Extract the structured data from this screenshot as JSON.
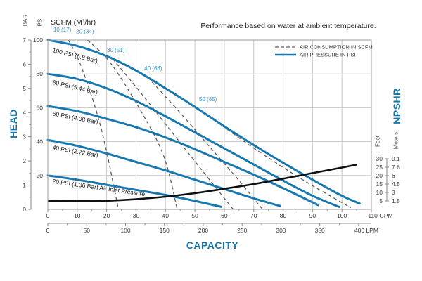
{
  "title": "Performance based on water at ambient temperature.",
  "labels": {
    "head": "HEAD",
    "capacity": "CAPACITY",
    "npshr": "NPSHR",
    "bar_unit": "BAR",
    "psi_unit": "PSI",
    "scfm_header": "SCFM (M³/hr)",
    "feet_unit": "Feet",
    "meters_unit": "Meters"
  },
  "legend": {
    "items": [
      {
        "label": "AIR CONSUMPTION IN SCFM",
        "style": "dashed"
      },
      {
        "label": "AIR PRESSURE IN PSI",
        "style": "solid"
      }
    ]
  },
  "colors": {
    "accent_blue": "#1577ad",
    "curve_blue": "#1878b0",
    "air_label_blue": "#3e96c8",
    "dashed_gray": "#5f5f5f",
    "npshr_black": "#0f0f0f",
    "grid": "#c7c7c7",
    "border": "#9b9b9b",
    "text": "#3c3c3c"
  },
  "chart_data": {
    "type": "line",
    "title": "Performance based on water at ambient temperature.",
    "x_axis_gpm": {
      "max": 110,
      "tick_step": 10,
      "tick_labels": [
        "0",
        "10",
        "20",
        "30",
        "40",
        "50",
        "60",
        "70",
        "80",
        "90",
        "100"
      ],
      "end_label": "110 GPM"
    },
    "x_axis_lpm": {
      "max": 400,
      "tick_step": 50,
      "tick_labels": [
        "0",
        "50",
        "100",
        "150",
        "200",
        "250",
        "300",
        "350"
      ],
      "end_label": "400 LPM"
    },
    "gpm_to_lpm": 3.785,
    "y_axis_psi": {
      "max": 100,
      "tick_labels": [
        100,
        80,
        60,
        40,
        20
      ],
      "gridlines": [
        20,
        40,
        60,
        80
      ]
    },
    "y_axis_bar": {
      "max": 7,
      "tick_labels": [
        7,
        6,
        5,
        4,
        3,
        2,
        1,
        0
      ]
    },
    "npshr_axis": {
      "feet": [
        "30",
        "25",
        "20",
        "15",
        "10",
        "5"
      ],
      "meters": [
        "9.1",
        "7.6",
        "6",
        "4.5",
        "3",
        "1.5"
      ]
    },
    "pressure_curves": [
      {
        "name": "100 PSI (6.8 Bar)",
        "label_anchor": [
          1.5,
          93
        ],
        "label_angle": 14,
        "points": [
          [
            0,
            100
          ],
          [
            10,
            96.5
          ],
          [
            20,
            90.5
          ],
          [
            30,
            82
          ],
          [
            40,
            71.5
          ],
          [
            50,
            60.5
          ],
          [
            60,
            49
          ],
          [
            70,
            38
          ],
          [
            80,
            27.5
          ],
          [
            90,
            17.5
          ],
          [
            100,
            8
          ],
          [
            106,
            3.5
          ]
        ]
      },
      {
        "name": "80 PSI (5.44 Bar)",
        "label_anchor": [
          1.5,
          74
        ],
        "label_angle": 13,
        "points": [
          [
            0,
            80
          ],
          [
            10,
            77
          ],
          [
            20,
            71.5
          ],
          [
            30,
            64
          ],
          [
            40,
            55
          ],
          [
            50,
            45.5
          ],
          [
            60,
            36
          ],
          [
            70,
            26.5
          ],
          [
            80,
            17
          ],
          [
            90,
            8
          ],
          [
            99,
            1.5
          ]
        ]
      },
      {
        "name": "60 PSI (4.08 Bar)",
        "label_anchor": [
          1.5,
          55.5
        ],
        "label_angle": 11,
        "points": [
          [
            0,
            61
          ],
          [
            10,
            58
          ],
          [
            20,
            53.5
          ],
          [
            30,
            48.5
          ],
          [
            40,
            42.5
          ],
          [
            50,
            35.5
          ],
          [
            60,
            28
          ],
          [
            70,
            20.5
          ],
          [
            80,
            12.5
          ],
          [
            92,
            2.5
          ]
        ]
      },
      {
        "name": "40 PSI (2.72 Bar)",
        "label_anchor": [
          1.5,
          35.5
        ],
        "label_angle": 10,
        "points": [
          [
            0,
            41
          ],
          [
            10,
            37.5
          ],
          [
            20,
            33
          ],
          [
            30,
            28
          ],
          [
            40,
            23
          ],
          [
            50,
            17.5
          ],
          [
            60,
            12
          ],
          [
            70,
            6.5
          ],
          [
            79,
            2
          ]
        ]
      },
      {
        "name": "20 PSI (1.36 Bar) Air Inlet Pressure",
        "label_anchor": [
          1.5,
          15.5
        ],
        "label_angle": 8,
        "points": [
          [
            0,
            20
          ],
          [
            10,
            17.5
          ],
          [
            20,
            14.5
          ],
          [
            30,
            11.5
          ],
          [
            40,
            8.5
          ],
          [
            50,
            5
          ],
          [
            59,
            1.5
          ]
        ]
      }
    ],
    "air_curves": [
      {
        "name": "10 (17)",
        "label_anchor": [
          1.9,
          105
        ],
        "points": [
          [
            7,
            100
          ],
          [
            11,
            86
          ],
          [
            16.5,
            58
          ],
          [
            20,
            34
          ],
          [
            24,
            0
          ]
        ]
      },
      {
        "name": "20 (34)",
        "label_anchor": [
          9.6,
          104
        ],
        "points": [
          [
            13.5,
            100
          ],
          [
            21.5,
            86
          ],
          [
            32,
            57
          ],
          [
            39.5,
            31
          ],
          [
            44,
            0
          ]
        ]
      },
      {
        "name": "30 (51)",
        "label_anchor": [
          20.1,
          93
        ],
        "points": [
          [
            22,
            89
          ],
          [
            32,
            68
          ],
          [
            42,
            46
          ],
          [
            52,
            24
          ],
          [
            63,
            0
          ]
        ]
      },
      {
        "name": "40 (68)",
        "label_anchor": [
          32.8,
          82.2
        ],
        "points": [
          [
            34,
            78
          ],
          [
            45,
            57
          ],
          [
            55,
            37
          ],
          [
            65,
            17
          ],
          [
            73,
            0
          ]
        ]
      },
      {
        "name": "50 (85)",
        "label_anchor": [
          51.4,
          64
        ],
        "points": [
          [
            54,
            56
          ],
          [
            66,
            41
          ],
          [
            78,
            27
          ],
          [
            90,
            14
          ],
          [
            103,
            1
          ]
        ]
      }
    ],
    "npshr_curve": {
      "points_gpm_feet": [
        [
          0,
          5
        ],
        [
          10,
          4.9
        ],
        [
          20,
          5.1
        ],
        [
          30,
          6
        ],
        [
          40,
          7.5
        ],
        [
          50,
          9.6
        ],
        [
          60,
          12.2
        ],
        [
          70,
          15
        ],
        [
          80,
          18.2
        ],
        [
          90,
          21.5
        ],
        [
          100,
          24.8
        ],
        [
          105,
          26.5
        ]
      ]
    }
  }
}
